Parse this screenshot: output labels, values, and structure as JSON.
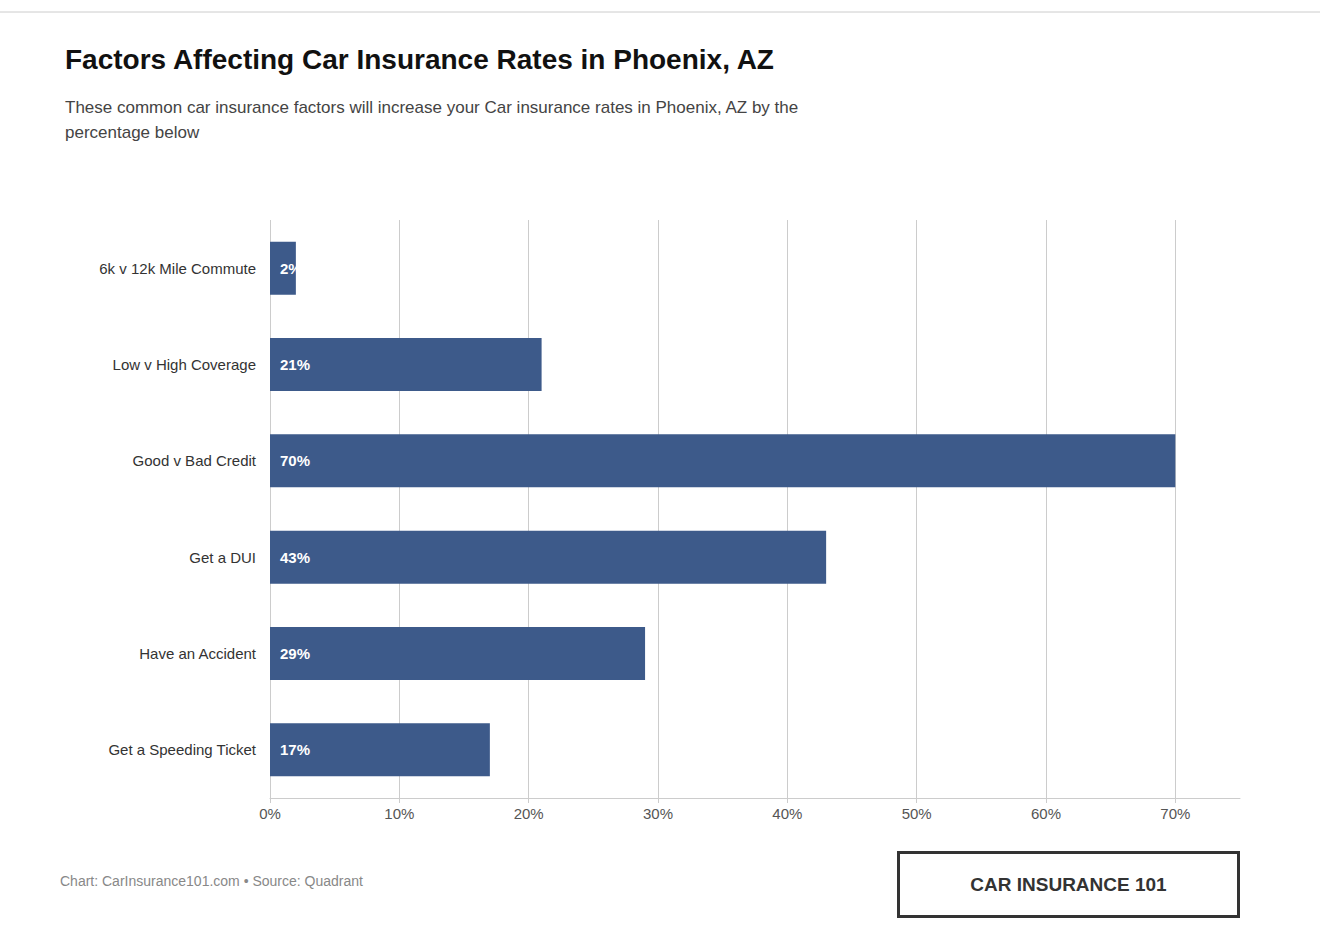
{
  "chart_data": {
    "type": "bar",
    "orientation": "horizontal",
    "title": "Factors Affecting Car Insurance Rates in Phoenix, AZ",
    "subtitle": "These common car insurance factors will increase your Car insurance rates in Phoenix, AZ by the\npercentage below",
    "categories": [
      "6k v 12k Mile Commute",
      "Low v High Coverage",
      "Good v Bad Credit",
      "Get a DUI",
      "Have an Accident",
      "Get a Speeding Ticket"
    ],
    "values": [
      2,
      21,
      70,
      43,
      29,
      17
    ],
    "value_labels": [
      "2%",
      "21%",
      "70%",
      "43%",
      "29%",
      "17%"
    ],
    "data_labels": true,
    "color": "#3d5a8a",
    "xlim": [
      0,
      75
    ],
    "xticks": [
      {
        "value": 0,
        "label": "0%"
      },
      {
        "value": 10,
        "label": "10%"
      },
      {
        "value": 20,
        "label": "20%"
      },
      {
        "value": 30,
        "label": "30%"
      },
      {
        "value": 40,
        "label": "40%"
      },
      {
        "value": 50,
        "label": "50%"
      },
      {
        "value": 60,
        "label": "60%"
      },
      {
        "value": 70,
        "label": "70%"
      }
    ],
    "grid": true,
    "annotations": [
      "Chart: CarInsurance101.com • Source: Quadrant",
      "CAR INSURANCE 101"
    ]
  }
}
